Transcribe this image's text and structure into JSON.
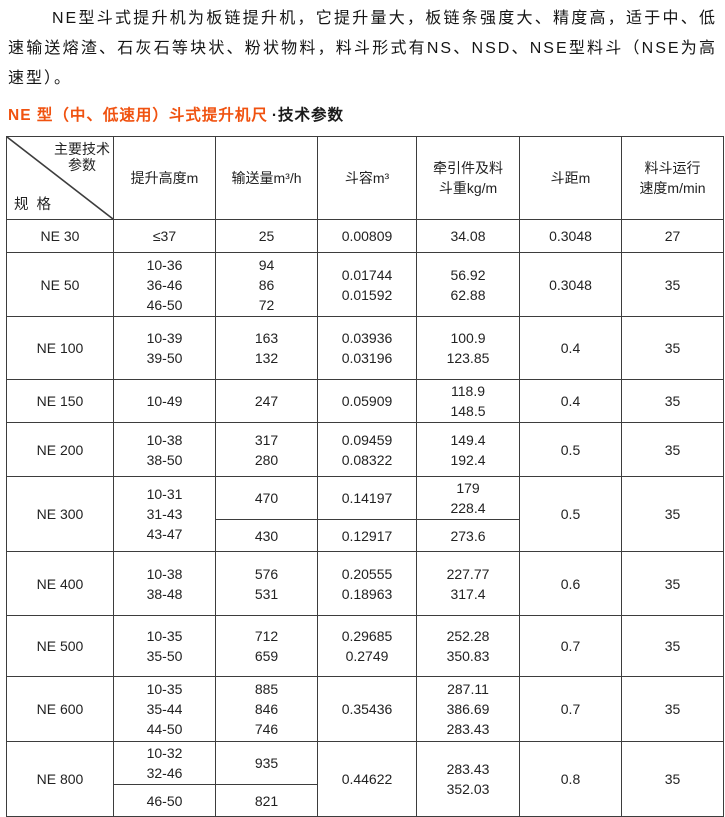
{
  "intro": {
    "text": "NE型斗式提升机为板链提升机，它提升量大，板链条强度大、精度高，适于中、低速输送熔渣、石灰石等块状、粉状物料，料斗形式有NS、NSD、NSE型料斗（NSE为高速型）。"
  },
  "heading": {
    "highlight": "NE 型（中、低速用）斗式提升机尺",
    "rest": "·技术参数",
    "highlight_color": "#f05210"
  },
  "table": {
    "corner": {
      "top_right": "主要技术\n参数",
      "bottom_left": "规 格"
    },
    "columns": [
      "提升高度m",
      "输送量m³/h",
      "斗容m³",
      "牵引件及料\n斗重kg/m",
      "斗距m",
      "料斗运行\n速度m/min"
    ],
    "rows": [
      {
        "cells": [
          {
            "t": "NE 30"
          },
          {
            "t": "≤37"
          },
          {
            "t": "25"
          },
          {
            "t": "0.00809"
          },
          {
            "t": "34.08"
          },
          {
            "t": "0.3048"
          },
          {
            "t": "27"
          }
        ]
      },
      {
        "cells": [
          {
            "t": "NE 50"
          },
          {
            "t": "10-36\n36-46\n46-50"
          },
          {
            "t": "94\n86\n72"
          },
          {
            "t": "0.01744\n0.01592"
          },
          {
            "t": "56.92\n62.88"
          },
          {
            "t": "0.3048"
          },
          {
            "t": "35"
          }
        ]
      },
      {
        "cells": [
          {
            "t": "NE 100"
          },
          {
            "t": "10-39\n39-50"
          },
          {
            "t": "163\n132"
          },
          {
            "t": "0.03936\n0.03196"
          },
          {
            "t": "100.9\n123.85"
          },
          {
            "t": "0.4"
          },
          {
            "t": "35"
          }
        ]
      },
      {
        "cells": [
          {
            "t": "NE 150"
          },
          {
            "t": "10-49"
          },
          {
            "t": "247"
          },
          {
            "t": "0.05909"
          },
          {
            "t": "118.9\n148.5"
          },
          {
            "t": "0.4"
          },
          {
            "t": "35"
          }
        ]
      },
      {
        "cells": [
          {
            "t": "NE 200"
          },
          {
            "t": "10-38\n38-50"
          },
          {
            "t": "317\n280"
          },
          {
            "t": "0.09459\n0.08322"
          },
          {
            "t": "149.4\n192.4"
          },
          {
            "t": "0.5"
          },
          {
            "t": "35"
          }
        ]
      },
      {
        "cells": [
          {
            "t": "NE 300",
            "rs": 2
          },
          {
            "t": "10-31\n31-43\n43-47",
            "rs": 2
          },
          {
            "t": "470"
          },
          {
            "t": "0.14197"
          },
          {
            "t": "179\n228.4"
          },
          {
            "t": "0.5",
            "rs": 2
          },
          {
            "t": "35",
            "rs": 2
          }
        ]
      },
      {
        "cells": [
          {
            "t": "430"
          },
          {
            "t": "0.12917"
          },
          {
            "t": "273.6"
          }
        ]
      },
      {
        "cells": [
          {
            "t": "NE 400"
          },
          {
            "t": "10-38\n38-48"
          },
          {
            "t": "576\n531"
          },
          {
            "t": "0.20555\n0.18963"
          },
          {
            "t": "227.77\n317.4"
          },
          {
            "t": "0.6"
          },
          {
            "t": "35"
          }
        ]
      },
      {
        "cells": [
          {
            "t": "NE 500"
          },
          {
            "t": "10-35\n35-50"
          },
          {
            "t": "712\n659"
          },
          {
            "t": "0.29685\n0.2749"
          },
          {
            "t": "252.28\n350.83"
          },
          {
            "t": "0.7"
          },
          {
            "t": "35"
          }
        ]
      },
      {
        "cells": [
          {
            "t": "NE 600"
          },
          {
            "t": "10-35\n35-44\n44-50"
          },
          {
            "t": "885\n846\n746"
          },
          {
            "t": "0.35436"
          },
          {
            "t": "287.11\n386.69\n283.43"
          },
          {
            "t": "0.7"
          },
          {
            "t": "35"
          }
        ]
      },
      {
        "cells": [
          {
            "t": "NE 800",
            "rs": 2
          },
          {
            "t": "10-32\n32-46"
          },
          {
            "t": "935"
          },
          {
            "t": "0.44622",
            "rs": 2
          },
          {
            "t": "283.43\n352.03",
            "rs": 2
          },
          {
            "t": "0.8",
            "rs": 2
          },
          {
            "t": "35",
            "rs": 2
          }
        ]
      },
      {
        "cells": [
          {
            "t": "46-50"
          },
          {
            "t": "821"
          }
        ]
      }
    ]
  }
}
